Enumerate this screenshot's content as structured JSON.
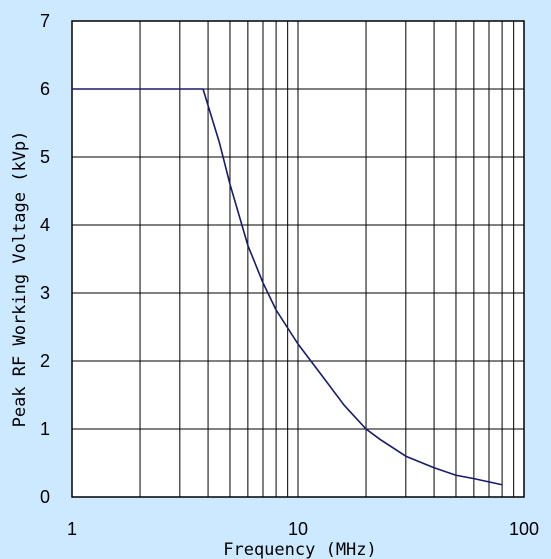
{
  "chart_data": {
    "type": "line",
    "xlabel": "Frequency (MHz)",
    "ylabel": "Peak RF Working Voltage (kVp)",
    "x_scale": "log",
    "xlim": [
      1,
      100
    ],
    "ylim": [
      0,
      7
    ],
    "x_ticks": [
      {
        "value": 1,
        "label": "1"
      },
      {
        "value": 10,
        "label": "10"
      },
      {
        "value": 100,
        "label": "100"
      }
    ],
    "y_ticks": [
      {
        "value": 0,
        "label": "0"
      },
      {
        "value": 1,
        "label": "1"
      },
      {
        "value": 2,
        "label": "2"
      },
      {
        "value": 3,
        "label": "3"
      },
      {
        "value": 4,
        "label": "4"
      },
      {
        "value": 5,
        "label": "5"
      },
      {
        "value": 6,
        "label": "6"
      },
      {
        "value": 7,
        "label": "7"
      }
    ],
    "grid": true,
    "series": [
      {
        "x": [
          1,
          3.8,
          4.5,
          5,
          6,
          7,
          8,
          10,
          13,
          16,
          20,
          23,
          30,
          40,
          50,
          60,
          80
        ],
        "y": [
          6,
          6,
          5.2,
          4.6,
          3.7,
          3.15,
          2.75,
          2.25,
          1.75,
          1.35,
          1.0,
          0.85,
          0.6,
          0.43,
          0.32,
          0.27,
          0.18
        ]
      }
    ],
    "colors": {
      "background": "#cce9ff",
      "plot_area": "#ffffff",
      "line": "#1a1a6e",
      "grid": "#000000"
    }
  }
}
